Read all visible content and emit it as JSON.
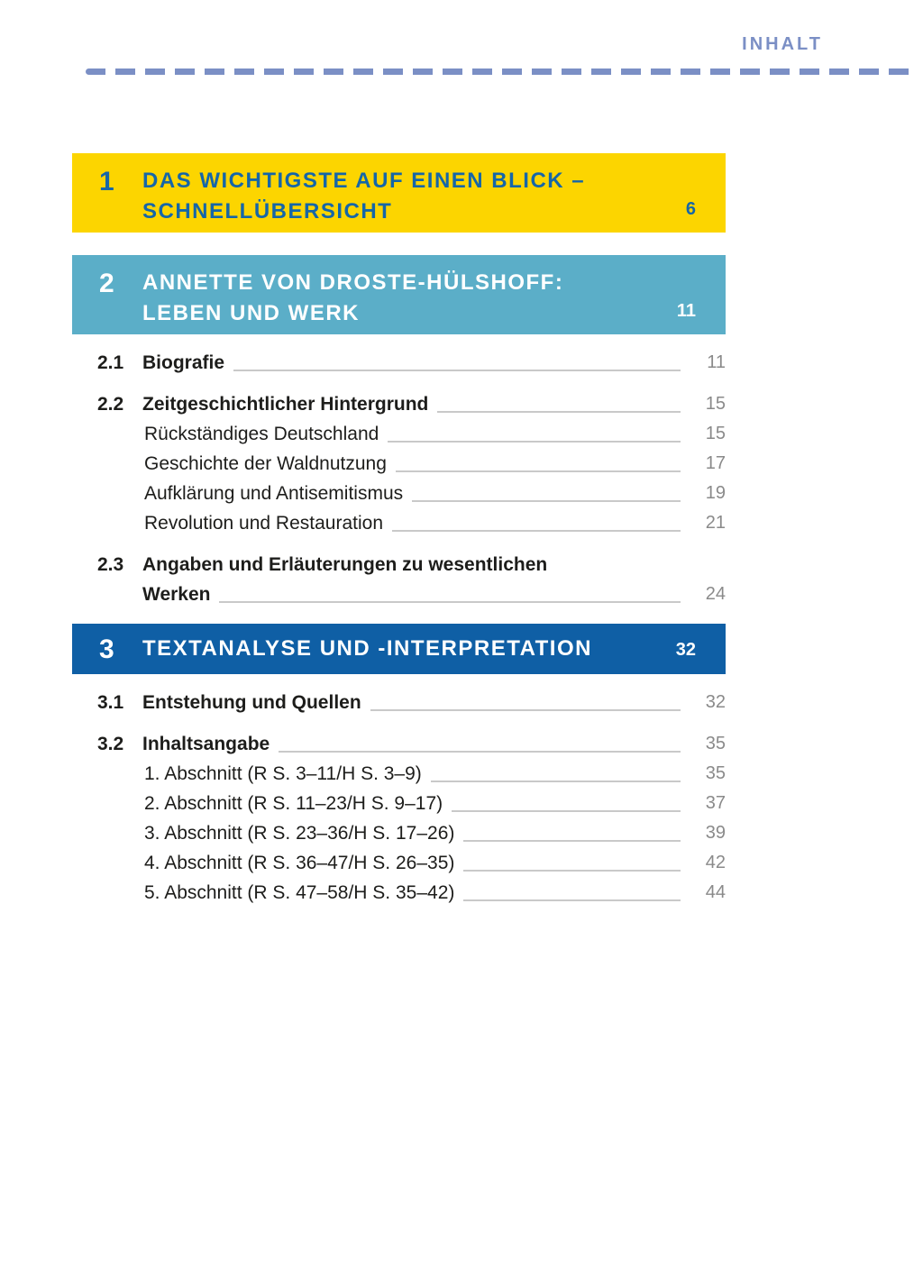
{
  "header": {
    "label": "INHALT"
  },
  "colors": {
    "accent_yellow": "#fcd500",
    "accent_teal": "#5baec8",
    "accent_blue": "#0f5fa5",
    "heading_blue_on_yellow": "#1566a8",
    "header_rule_blue": "#7b8fc5",
    "entry_text": "#1d1d1b",
    "page_number_gray": "#8a8a8a"
  },
  "chapters": [
    {
      "number": "1",
      "line1": "DAS WICHTIGSTE AUF EINEN BLICK –",
      "line2": "SCHNELLÜBERSICHT",
      "page": "6"
    },
    {
      "number": "2",
      "line1": "ANNETTE VON DROSTE-HÜLSHOFF:",
      "line2": "LEBEN UND WERK",
      "page": "11"
    },
    {
      "number": "3",
      "line1": "TEXTANALYSE UND -INTERPRETATION",
      "page": "32"
    }
  ],
  "entries": [
    {
      "num": "2.1",
      "text": "Biografie",
      "page": "11"
    },
    {
      "num": "2.2",
      "text": "Zeitgeschichtlicher Hintergrund",
      "page": "15"
    },
    {
      "text": "Rückständiges Deutschland",
      "page": "15"
    },
    {
      "text": "Geschichte der Waldnutzung",
      "page": "17"
    },
    {
      "text": "Aufklärung und Antisemitismus",
      "page": "19"
    },
    {
      "text": "Revolution und Restauration",
      "page": "21"
    },
    {
      "num": "2.3",
      "line1": "Angaben und Erläuterungen zu wesentlichen",
      "line2": "Werken",
      "page": "24"
    },
    {
      "num": "3.1",
      "text": "Entstehung und Quellen",
      "page": "32"
    },
    {
      "num": "3.2",
      "text": "Inhaltsangabe",
      "page": "35"
    },
    {
      "text": "1. Abschnitt (R S. 3–11/H S. 3–9)",
      "page": "35"
    },
    {
      "text": "2. Abschnitt (R S. 11–23/H S. 9–17)",
      "page": "37"
    },
    {
      "text": "3. Abschnitt (R S. 23–36/H S. 17–26)",
      "page": "39"
    },
    {
      "text": "4. Abschnitt (R S. 36–47/H S. 26–35)",
      "page": "42"
    },
    {
      "text": "5. Abschnitt (R S. 47–58/H S. 35–42)",
      "page": "44"
    }
  ]
}
